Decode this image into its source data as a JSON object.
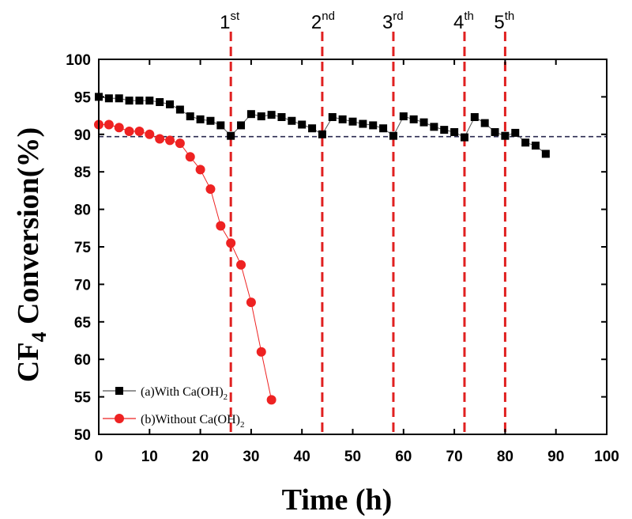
{
  "chart_data": {
    "type": "scatter",
    "title": "",
    "xlabel": "Time (h)",
    "ylabel": {
      "main": "CF",
      "sub": "4",
      "rest": " Conversion(%)"
    },
    "xlim": [
      0,
      100
    ],
    "ylim": [
      50,
      100
    ],
    "xticks": [
      0,
      10,
      20,
      30,
      40,
      50,
      60,
      70,
      80,
      90,
      100
    ],
    "yticks": [
      50,
      55,
      60,
      65,
      70,
      75,
      80,
      85,
      90,
      95,
      100
    ],
    "reference_line": {
      "y": 89.7,
      "style": "dashed",
      "color": "#2a2a50"
    },
    "regeneration_markers": [
      {
        "x": 26,
        "label": "1",
        "sup": "st"
      },
      {
        "x": 44,
        "label": "2",
        "sup": "nd"
      },
      {
        "x": 58,
        "label": "3",
        "sup": "rd"
      },
      {
        "x": 72,
        "label": "4",
        "sup": "th"
      },
      {
        "x": 80,
        "label": "5",
        "sup": "th"
      }
    ],
    "marker_color": "#e02020",
    "series": [
      {
        "name": "(a)With Ca(OH)",
        "name_sub": "2",
        "marker": "square",
        "color": "#000000",
        "line_color": "#555555",
        "x": [
          0,
          2,
          4,
          6,
          8,
          10,
          12,
          14,
          16,
          18,
          20,
          22,
          24,
          26,
          28,
          30,
          32,
          34,
          36,
          38,
          40,
          42,
          44,
          46,
          48,
          50,
          52,
          54,
          56,
          58,
          60,
          62,
          64,
          66,
          68,
          70,
          72,
          74,
          76,
          78,
          80,
          82,
          84,
          86,
          88
        ],
        "y": [
          95.0,
          94.8,
          94.8,
          94.5,
          94.5,
          94.5,
          94.3,
          94.0,
          93.3,
          92.4,
          92.0,
          91.8,
          91.2,
          89.8,
          91.2,
          92.7,
          92.4,
          92.6,
          92.3,
          91.8,
          91.3,
          90.8,
          90.0,
          92.3,
          92.0,
          91.7,
          91.4,
          91.2,
          90.8,
          89.8,
          92.4,
          92.0,
          91.6,
          91.0,
          90.6,
          90.3,
          89.6,
          92.3,
          91.5,
          90.3,
          89.8,
          90.2,
          88.9,
          88.5,
          87.4
        ]
      },
      {
        "name": "(b)Without Ca(OH)",
        "name_sub": "2",
        "marker": "circle",
        "color": "#ee2222",
        "line_color": "#ee2222",
        "x": [
          0,
          2,
          4,
          6,
          8,
          10,
          12,
          14,
          16,
          18,
          20,
          22,
          24,
          26,
          28,
          30,
          32,
          34
        ],
        "y": [
          91.3,
          91.3,
          90.9,
          90.4,
          90.4,
          90.0,
          89.4,
          89.2,
          88.8,
          87.0,
          85.3,
          82.7,
          77.8,
          75.5,
          72.6,
          67.6,
          61.0,
          54.6
        ]
      }
    ]
  }
}
